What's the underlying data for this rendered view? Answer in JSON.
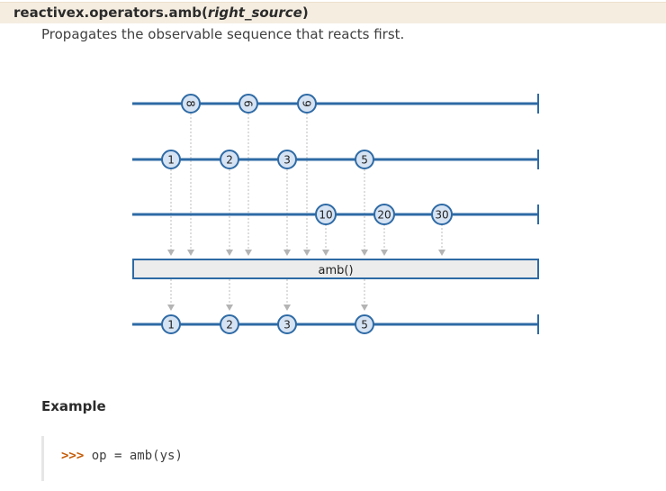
{
  "signature": {
    "prefix": "reactivex.operators.amb(",
    "arg": "right_source",
    "suffix": ")"
  },
  "description": "Propagates the observable sequence that reacts first.",
  "diagram": {
    "operator_label": "amb()",
    "sources": [
      {
        "values": [
          "8",
          "6",
          "9"
        ]
      },
      {
        "values": [
          "1",
          "2",
          "3",
          "5"
        ]
      },
      {
        "values": [
          "10",
          "20",
          "30"
        ]
      }
    ],
    "result": {
      "values": [
        "1",
        "2",
        "3",
        "5"
      ]
    },
    "colors": {
      "line": "#2e6aa5",
      "marble_fill": "#d6e3f3",
      "arrow": "#b4b4b4",
      "box_fill": "#ececec"
    }
  },
  "example": {
    "heading": "Example",
    "prompt": ">>>",
    "code": " op = amb(ys)"
  }
}
